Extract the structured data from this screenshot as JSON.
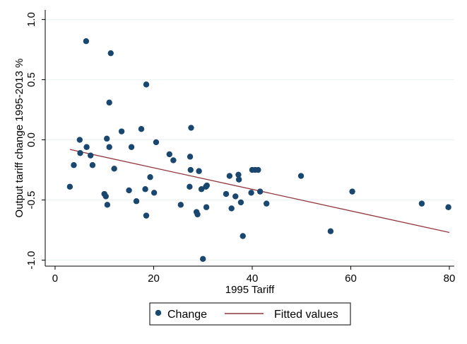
{
  "chart_data": {
    "type": "scatter",
    "xlabel": "1995 Tariff",
    "ylabel": "Output tariff change 1995-2013 %",
    "xlim": [
      -2,
      81
    ],
    "ylim": [
      -1.05,
      1.08
    ],
    "xticks": [
      0,
      20,
      40,
      60,
      80
    ],
    "xtick_labels": [
      "0",
      "20",
      "40",
      "60",
      "80"
    ],
    "yticks": [
      -1.0,
      -0.5,
      0.0,
      0.5,
      1.0
    ],
    "ytick_labels": [
      "-1.0",
      "-0.5",
      "0.0",
      "0.5",
      "1.0"
    ],
    "grid": "horizontal",
    "legend_position": "bottom",
    "series": [
      {
        "name": "Change",
        "kind": "scatter",
        "color": "#1a476f",
        "points": [
          [
            3,
            -0.39
          ],
          [
            3.8,
            -0.21
          ],
          [
            5,
            0.0
          ],
          [
            5.1,
            -0.11
          ],
          [
            6.3,
            0.82
          ],
          [
            6.4,
            -0.06
          ],
          [
            7.2,
            -0.13
          ],
          [
            7.6,
            -0.21
          ],
          [
            10,
            -0.45
          ],
          [
            10.3,
            -0.47
          ],
          [
            10.5,
            0.01
          ],
          [
            10.6,
            -0.54
          ],
          [
            11,
            -0.06
          ],
          [
            11,
            0.31
          ],
          [
            11.3,
            0.72
          ],
          [
            12,
            -0.24
          ],
          [
            13.5,
            0.07
          ],
          [
            15,
            -0.42
          ],
          [
            15.5,
            -0.06
          ],
          [
            16.5,
            -0.51
          ],
          [
            17.5,
            0.09
          ],
          [
            18.3,
            -0.41
          ],
          [
            18.5,
            0.46
          ],
          [
            18.5,
            -0.63
          ],
          [
            19.3,
            -0.31
          ],
          [
            20.1,
            -0.44
          ],
          [
            20.5,
            -0.02
          ],
          [
            23.2,
            -0.12
          ],
          [
            24,
            -0.17
          ],
          [
            25.5,
            -0.54
          ],
          [
            27.3,
            -0.39
          ],
          [
            27.4,
            -0.14
          ],
          [
            27.5,
            -0.25
          ],
          [
            27.6,
            0.1
          ],
          [
            28.7,
            -0.6
          ],
          [
            28.9,
            -0.62
          ],
          [
            29.2,
            -0.26
          ],
          [
            29.7,
            -0.41
          ],
          [
            30,
            -0.99
          ],
          [
            30.6,
            -0.39
          ],
          [
            30.7,
            -0.56
          ],
          [
            30.8,
            -0.38
          ],
          [
            34.7,
            -0.45
          ],
          [
            35.4,
            -0.3
          ],
          [
            35.8,
            -0.57
          ],
          [
            36.6,
            -0.47
          ],
          [
            37.2,
            -0.29
          ],
          [
            37.3,
            -0.33
          ],
          [
            37.7,
            -0.52
          ],
          [
            38.1,
            -0.8
          ],
          [
            39.8,
            -0.44
          ],
          [
            40,
            -0.25
          ],
          [
            40.6,
            -0.25
          ],
          [
            41.2,
            -0.25
          ],
          [
            41.6,
            -0.43
          ],
          [
            42.9,
            -0.53
          ],
          [
            49.9,
            -0.3
          ],
          [
            55.9,
            -0.76
          ],
          [
            60.3,
            -0.43
          ],
          [
            74.4,
            -0.53
          ],
          [
            79.8,
            -0.56
          ]
        ]
      },
      {
        "name": "Fitted values",
        "kind": "line",
        "color": "#90353b",
        "points": [
          [
            3,
            -0.08
          ],
          [
            80,
            -0.77
          ]
        ]
      }
    ]
  }
}
